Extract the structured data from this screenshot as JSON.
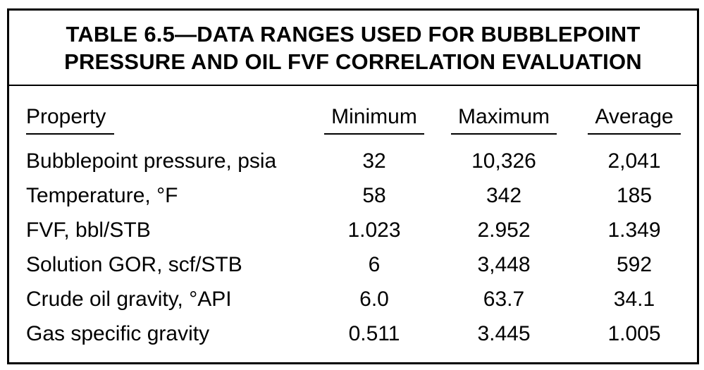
{
  "doc": {
    "title": {
      "line1": "TABLE 6.5—DATA RANGES USED FOR BUBBLEPOINT",
      "line2": "PRESSURE AND OIL FVF CORRELATION EVALUATION"
    },
    "columns": {
      "property": "Property",
      "minimum": "Minimum",
      "maximum": "Maximum",
      "average": "Average"
    },
    "rows": [
      {
        "property": "Bubblepoint pressure, psia",
        "minimum": "32",
        "maximum": "10,326",
        "average": "2,041"
      },
      {
        "property": "Temperature, °F",
        "minimum": "58",
        "maximum": "342",
        "average": "185"
      },
      {
        "property": "FVF, bbl/STB",
        "minimum": "1.023",
        "maximum": "2.952",
        "average": "1.349"
      },
      {
        "property": "Solution GOR, scf/STB",
        "minimum": "6",
        "maximum": "3,448",
        "average": "592"
      },
      {
        "property": "Crude oil gravity, °API",
        "minimum": "6.0",
        "maximum": "63.7",
        "average": "34.1"
      },
      {
        "property": "Gas specific gravity",
        "minimum": "0.511",
        "maximum": "3.445",
        "average": "1.005"
      }
    ],
    "colors": {
      "text": "#000000",
      "background": "#ffffff",
      "border": "#000000"
    }
  },
  "chart_data": {
    "type": "table",
    "title": "TABLE 6.5—DATA RANGES USED FOR BUBBLEPOINT PRESSURE AND OIL FVF CORRELATION EVALUATION",
    "columns": [
      "Property",
      "Minimum",
      "Maximum",
      "Average"
    ],
    "rows": [
      [
        "Bubblepoint pressure, psia",
        32,
        10326,
        2041
      ],
      [
        "Temperature, °F",
        58,
        342,
        185
      ],
      [
        "FVF, bbl/STB",
        1.023,
        2.952,
        1.349
      ],
      [
        "Solution GOR, scf/STB",
        6,
        3448,
        592
      ],
      [
        "Crude oil gravity, °API",
        6.0,
        63.7,
        34.1
      ],
      [
        "Gas specific gravity",
        0.511,
        3.445,
        1.005
      ]
    ]
  }
}
